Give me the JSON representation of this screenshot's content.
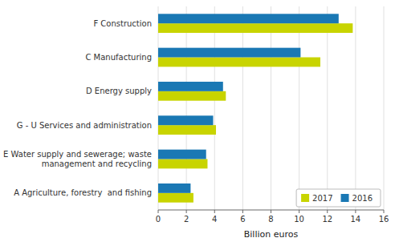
{
  "chart_data": {
    "type": "bar",
    "orientation": "horizontal",
    "categories": [
      "F Construction",
      "C Manufacturing",
      "D Energy supply",
      "G - U Services and administration",
      "E Water supply and sewerage; waste\nmanagement and recycling",
      "A Agriculture, forestry  and fishing"
    ],
    "series": [
      {
        "name": "2017",
        "color": "#c8d400",
        "values": [
          13.8,
          11.5,
          4.8,
          4.1,
          3.5,
          2.5
        ]
      },
      {
        "name": "2016",
        "color": "#1a78b4",
        "values": [
          12.8,
          10.1,
          4.6,
          3.9,
          3.4,
          2.3
        ]
      }
    ],
    "xlabel": "Billion euros",
    "xlim": [
      0,
      16
    ],
    "xticks": [
      0,
      2,
      4,
      6,
      8,
      10,
      12,
      14,
      16
    ],
    "grid": true,
    "legend": "lower right"
  }
}
